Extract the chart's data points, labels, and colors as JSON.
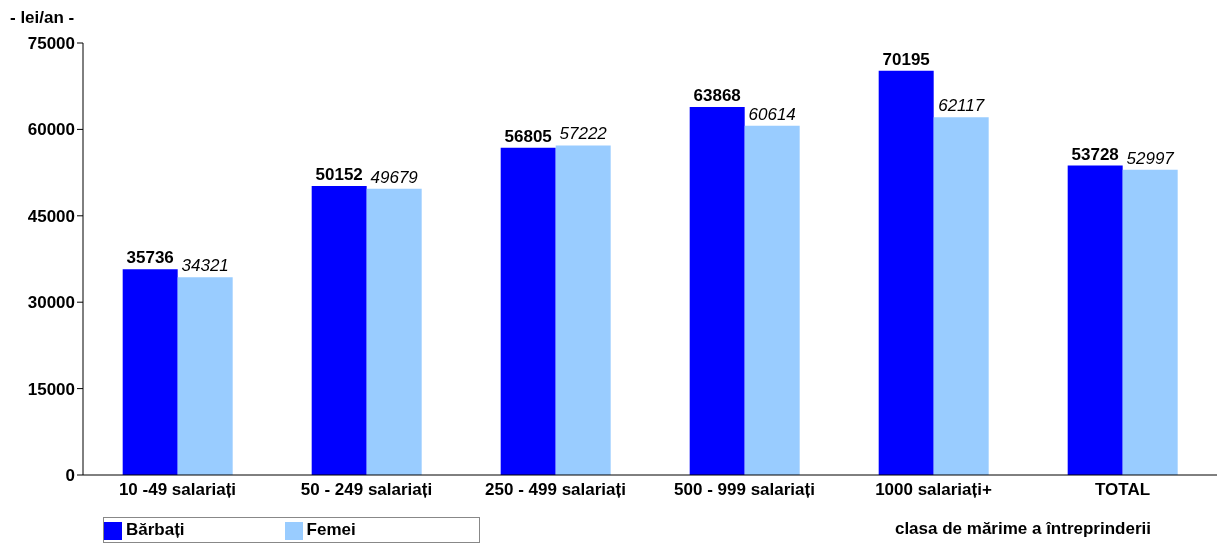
{
  "chart_data": {
    "type": "bar",
    "ylabel": "- lei/an -",
    "xlabel": "clasa de mărime a întreprinderii",
    "categories": [
      "10 -49 salariați",
      "50 - 249 salariați",
      "250 - 499 salariați",
      "500 - 999 salariați",
      "1000 salariați+",
      "TOTAL"
    ],
    "series": [
      {
        "name": "Bărbați",
        "color": "#0000ff",
        "values": [
          35736,
          50152,
          56805,
          63868,
          70195,
          53728
        ]
      },
      {
        "name": "Femei",
        "color": "#99ccff",
        "values": [
          34321,
          49679,
          57222,
          60614,
          62117,
          52997
        ]
      }
    ],
    "ylim": [
      0,
      75000
    ],
    "yticks": [
      0,
      15000,
      30000,
      45000,
      60000,
      75000
    ],
    "grid": false,
    "legend": "bottom left",
    "data_labels": true
  }
}
